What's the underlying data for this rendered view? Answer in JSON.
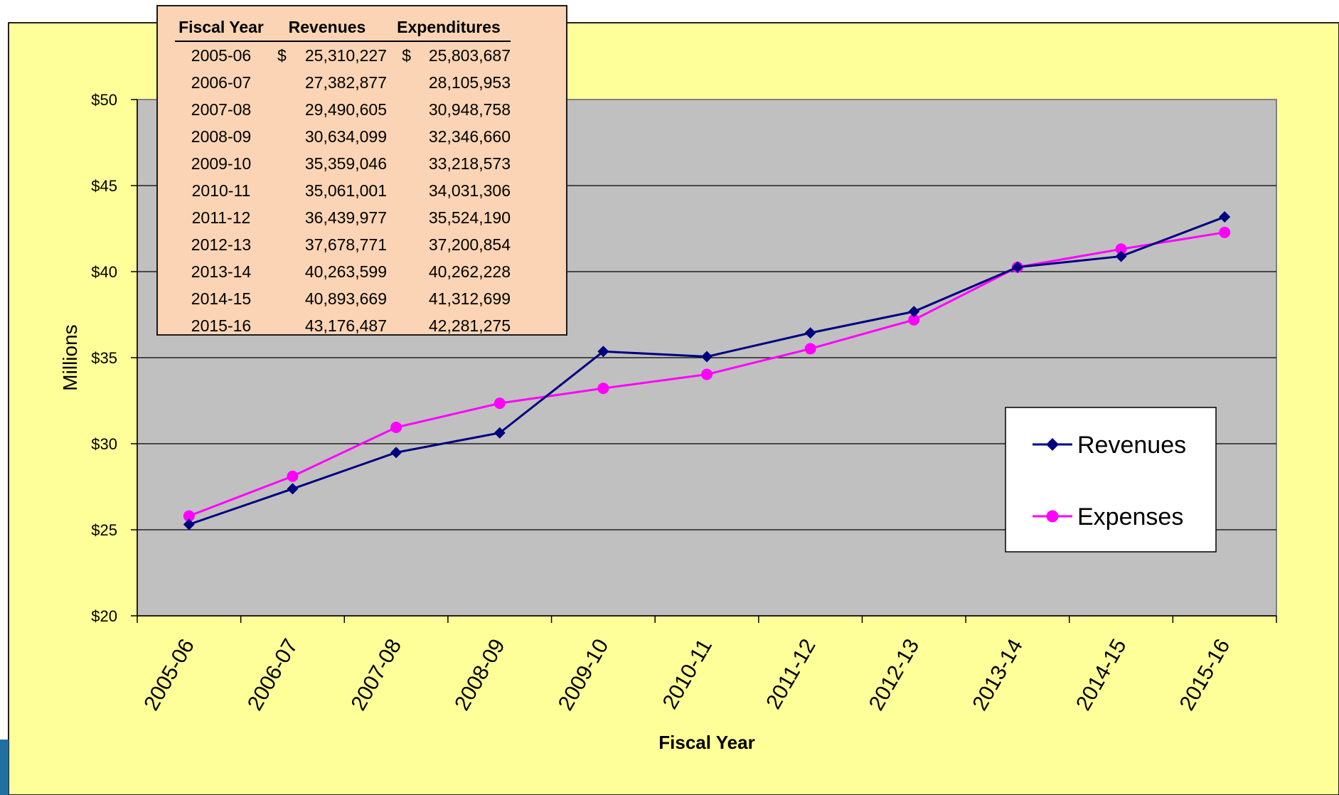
{
  "colors": {
    "background": "#ffff99",
    "plot_area": "#c0c0c0",
    "revenues_line": "#000080",
    "expenses_line": "#ff00ff",
    "table_fill": "#fad4b4"
  },
  "chart_data": {
    "type": "line",
    "categories": [
      "2005-06",
      "2006-07",
      "2007-08",
      "2008-09",
      "2009-10",
      "2010-11",
      "2011-12",
      "2012-13",
      "2013-14",
      "2014-15",
      "2015-16"
    ],
    "series": [
      {
        "name": "Revenues",
        "marker": "diamond",
        "values": [
          25.31,
          27.38,
          29.49,
          30.63,
          35.36,
          35.06,
          36.44,
          37.68,
          40.26,
          40.89,
          43.18
        ]
      },
      {
        "name": "Expenses",
        "marker": "circle",
        "values": [
          25.8,
          28.11,
          30.95,
          32.35,
          33.22,
          34.03,
          35.52,
          37.2,
          40.26,
          41.31,
          42.28
        ]
      }
    ],
    "xlabel": "Fiscal Year",
    "ylabel": "Millions",
    "ylim": [
      20,
      50
    ],
    "y_ticks": [
      "$20",
      "$25",
      "$30",
      "$35",
      "$40",
      "$45",
      "$50"
    ],
    "grid": true,
    "legend_position": "right"
  },
  "table": {
    "headers": [
      "Fiscal Year",
      "Revenues",
      "Expenditures"
    ],
    "currency_symbol": "$",
    "rows": [
      {
        "year": "2005-06",
        "rev_symbol": "$",
        "revenues": "25,310,227",
        "exp_symbol": "$",
        "expenditures": "25,803,687"
      },
      {
        "year": "2006-07",
        "rev_symbol": "",
        "revenues": "27,382,877",
        "exp_symbol": "",
        "expenditures": "28,105,953"
      },
      {
        "year": "2007-08",
        "rev_symbol": "",
        "revenues": "29,490,605",
        "exp_symbol": "",
        "expenditures": "30,948,758"
      },
      {
        "year": "2008-09",
        "rev_symbol": "",
        "revenues": "30,634,099",
        "exp_symbol": "",
        "expenditures": "32,346,660"
      },
      {
        "year": "2009-10",
        "rev_symbol": "",
        "revenues": "35,359,046",
        "exp_symbol": "",
        "expenditures": "33,218,573"
      },
      {
        "year": "2010-11",
        "rev_symbol": "",
        "revenues": "35,061,001",
        "exp_symbol": "",
        "expenditures": "34,031,306"
      },
      {
        "year": "2011-12",
        "rev_symbol": "",
        "revenues": "36,439,977",
        "exp_symbol": "",
        "expenditures": "35,524,190"
      },
      {
        "year": "2012-13",
        "rev_symbol": "",
        "revenues": "37,678,771",
        "exp_symbol": "",
        "expenditures": "37,200,854"
      },
      {
        "year": "2013-14",
        "rev_symbol": "",
        "revenues": "40,263,599",
        "exp_symbol": "",
        "expenditures": "40,262,228"
      },
      {
        "year": "2014-15",
        "rev_symbol": "",
        "revenues": "40,893,669",
        "exp_symbol": "",
        "expenditures": "41,312,699"
      },
      {
        "year": "2015-16",
        "rev_symbol": "",
        "revenues": "43,176,487",
        "exp_symbol": "",
        "expenditures": "42,281,275"
      }
    ]
  }
}
